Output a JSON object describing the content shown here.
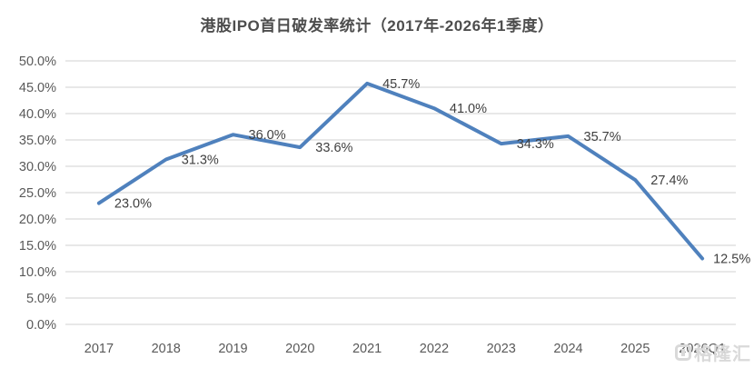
{
  "chart_data": {
    "type": "line",
    "title": "港股IPO首日破发率统计（2017年-2026年1季度）",
    "categories": [
      "2017",
      "2018",
      "2019",
      "2020",
      "2021",
      "2022",
      "2023",
      "2024",
      "2025",
      "2026Q1"
    ],
    "values": [
      23.0,
      31.3,
      36.0,
      33.6,
      45.7,
      41.0,
      34.3,
      35.7,
      27.4,
      12.5
    ],
    "data_labels": [
      "23.0%",
      "31.3%",
      "36.0%",
      "33.6%",
      "45.7%",
      "41.0%",
      "34.3%",
      "35.7%",
      "27.4%",
      "12.5%"
    ],
    "xlabel": "",
    "ylabel": "",
    "ylim": [
      0,
      50
    ],
    "ytick_step": 5,
    "ytick_labels": [
      "0.0%",
      "5.0%",
      "10.0%",
      "15.0%",
      "20.0%",
      "25.0%",
      "30.0%",
      "35.0%",
      "40.0%",
      "45.0%",
      "50.0%"
    ],
    "grid": true,
    "legend": false
  },
  "colors": {
    "line": "#4F81BD",
    "grid": "#D9D9D9",
    "axis_text": "#595959",
    "data_label_text": "#3f3f3f",
    "title_text": "#4d4d4d",
    "watermark": "#D9D9D9"
  },
  "watermark": {
    "icon": "gelonghui-logo",
    "text": "格隆汇"
  }
}
